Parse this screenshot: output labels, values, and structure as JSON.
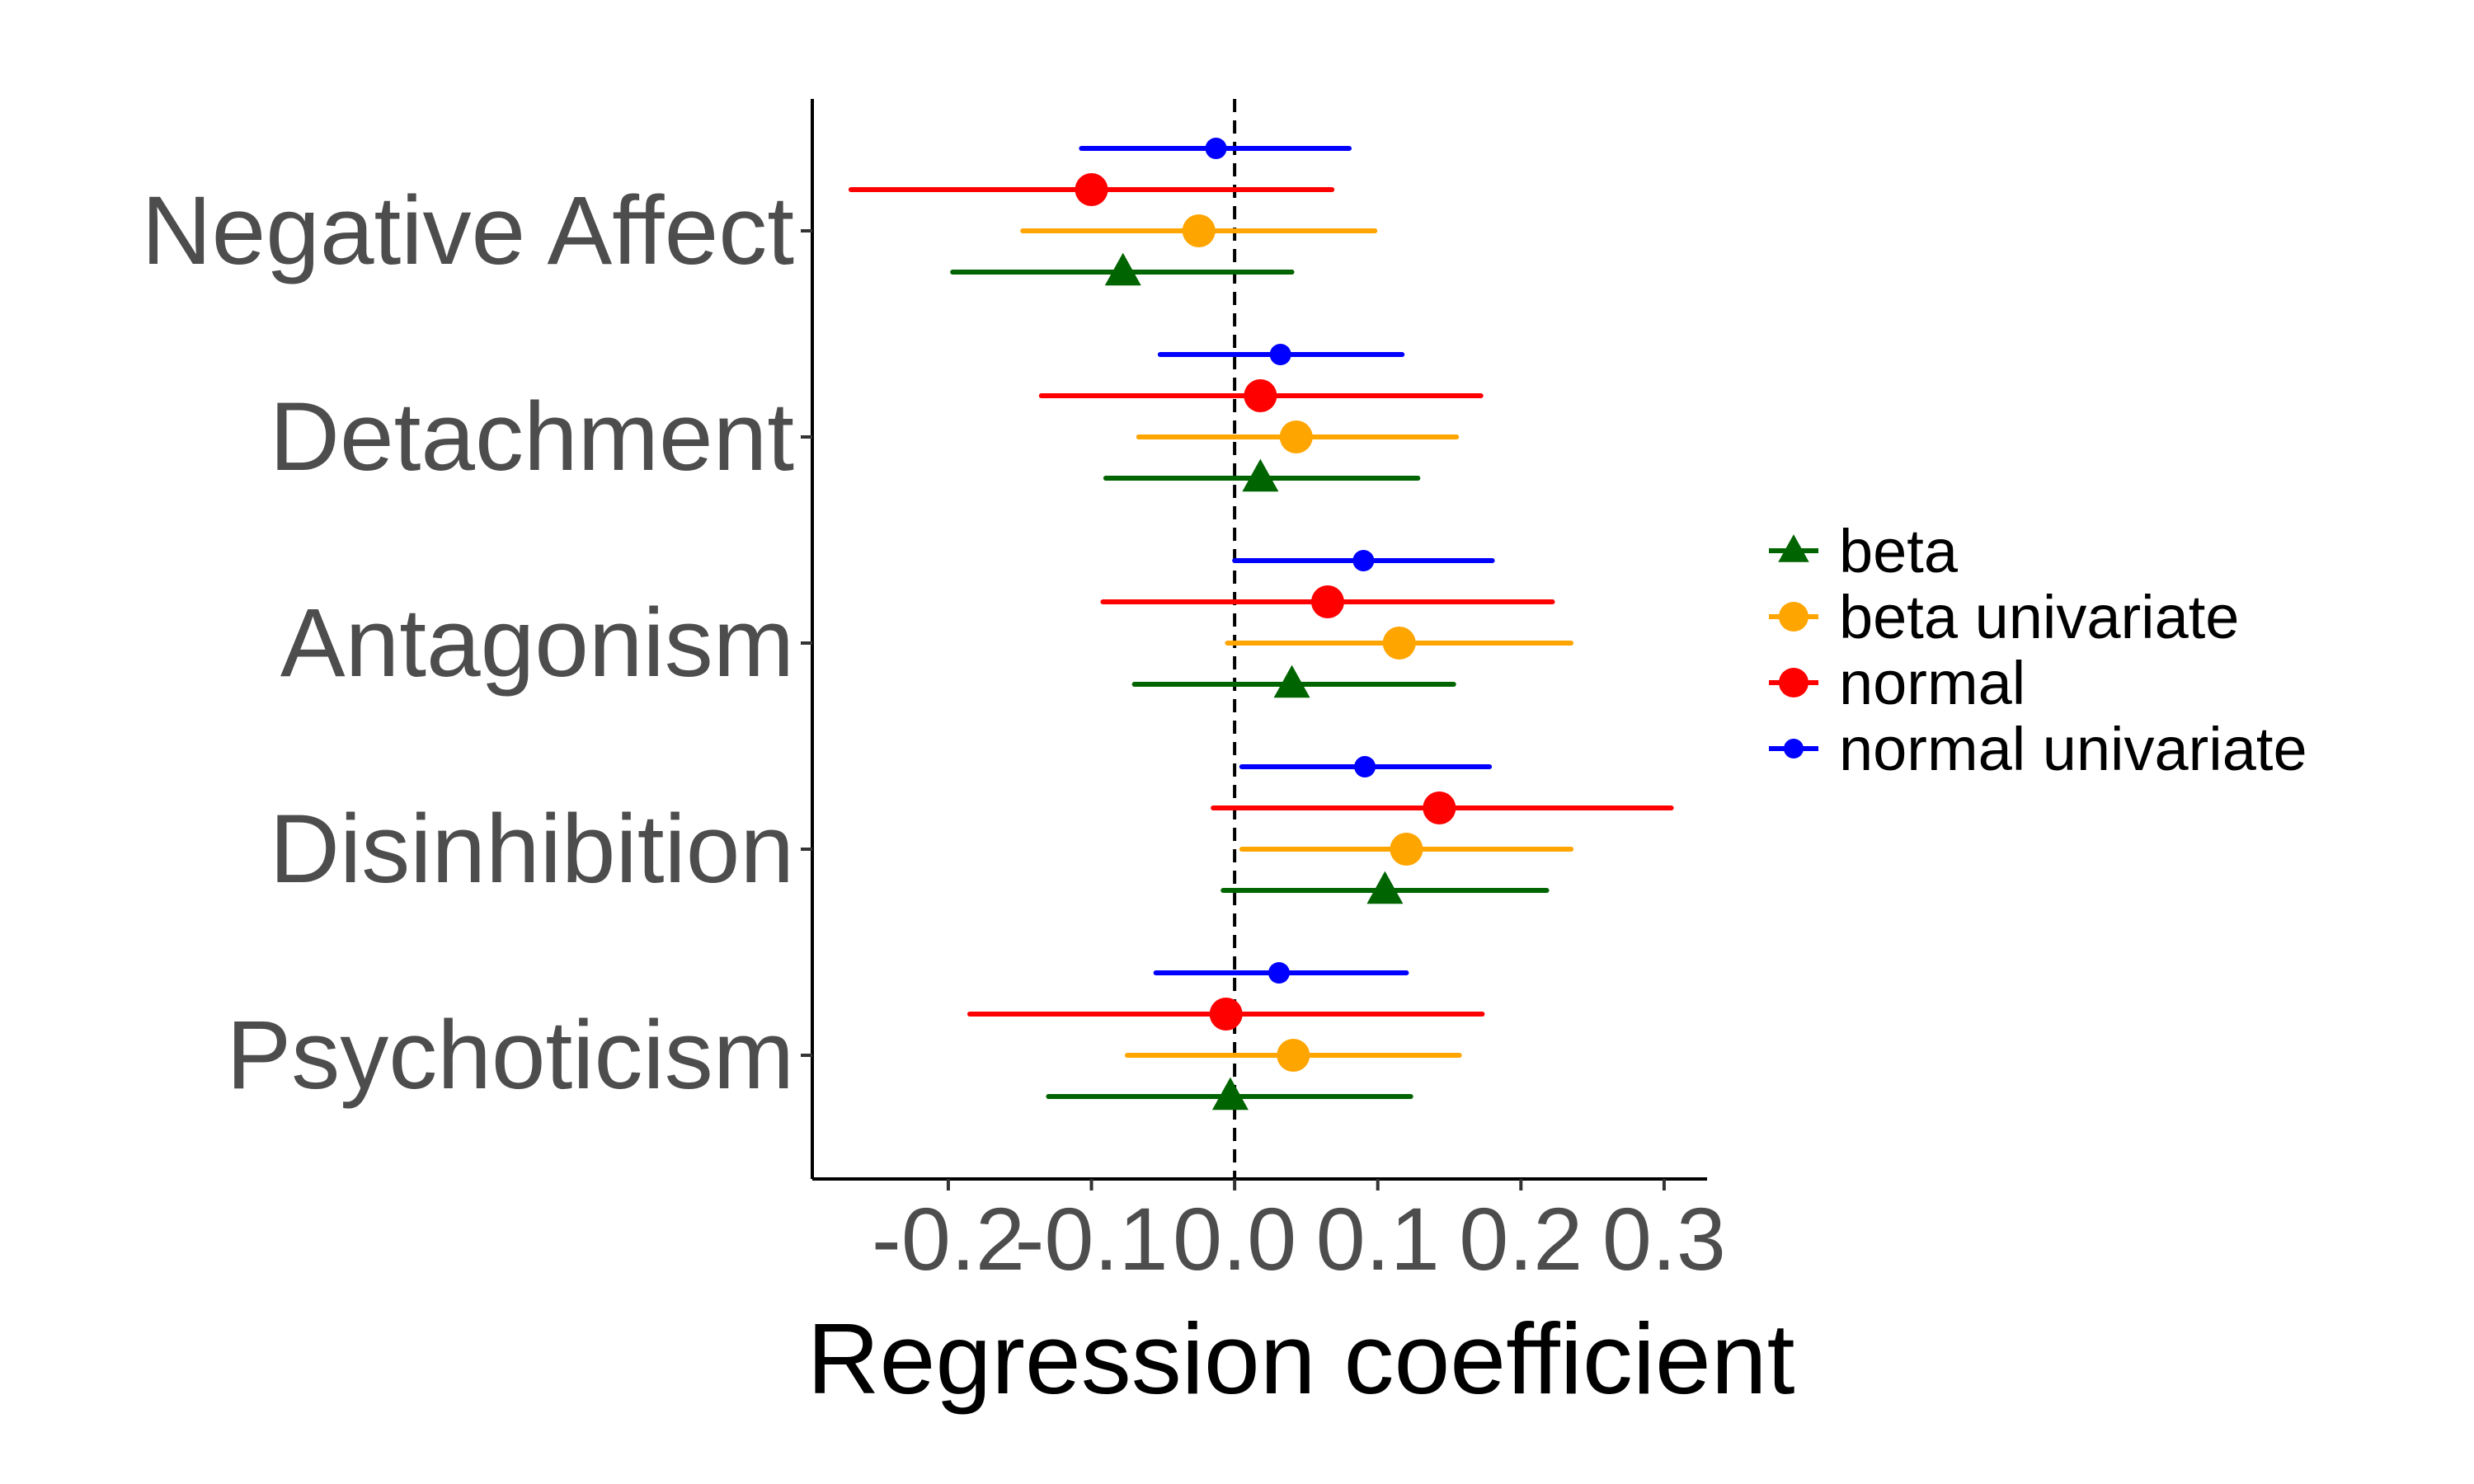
{
  "chart_data": {
    "type": "scatter",
    "subtype": "forest-plot",
    "title": "",
    "xlabel": "Regression coefficient",
    "ylabel": "",
    "xlim": [
      -0.295,
      0.33
    ],
    "xticks": [
      -0.2,
      -0.1,
      0.0,
      0.1,
      0.2,
      0.3
    ],
    "xtick_labels": [
      "-0.2",
      "-0.1",
      "0.0",
      "0.1",
      "0.2",
      "0.3"
    ],
    "reference_line": 0.0,
    "grid": false,
    "legend_position": "right",
    "categories": [
      "Negative Affect",
      "Detachment",
      "Antagonism",
      "Disinhibition",
      "Psychoticism"
    ],
    "series": [
      {
        "name": "beta",
        "color": "#006400",
        "marker": "triangle",
        "estimate": [
          -0.078,
          0.018,
          0.04,
          0.105,
          -0.003
        ],
        "lower": [
          -0.197,
          -0.09,
          -0.07,
          -0.008,
          -0.13
        ],
        "upper": [
          0.04,
          0.128,
          0.153,
          0.218,
          0.123
        ]
      },
      {
        "name": "beta univariate",
        "color": "#FFA500",
        "marker": "circle",
        "estimate": [
          -0.025,
          0.043,
          0.115,
          0.12,
          0.041
        ],
        "lower": [
          -0.148,
          -0.067,
          -0.005,
          0.005,
          -0.075
        ],
        "upper": [
          0.098,
          0.155,
          0.235,
          0.235,
          0.157
        ]
      },
      {
        "name": "normal",
        "color": "#FF0000",
        "marker": "circle",
        "estimate": [
          -0.1,
          0.018,
          0.065,
          0.143,
          -0.006
        ],
        "lower": [
          -0.268,
          -0.135,
          -0.092,
          -0.015,
          -0.185
        ],
        "upper": [
          0.068,
          0.172,
          0.222,
          0.305,
          0.173
        ]
      },
      {
        "name": "normal univariate",
        "color": "#0000FF",
        "marker": "circle",
        "estimate": [
          -0.013,
          0.032,
          0.09,
          0.091,
          0.031
        ],
        "lower": [
          -0.107,
          -0.052,
          0.0,
          0.005,
          -0.055
        ],
        "upper": [
          0.08,
          0.117,
          0.18,
          0.178,
          0.12
        ]
      }
    ]
  }
}
